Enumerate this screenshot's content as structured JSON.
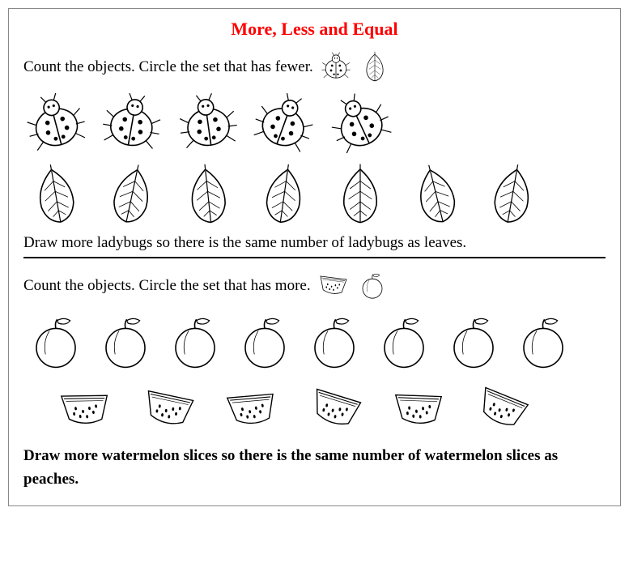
{
  "title": "More, Less and Equal",
  "title_color": "#ff0000",
  "section1": {
    "instruction": "Count the objects.  Circle the set that has fewer.",
    "ladybug_count": 5,
    "leaf_count": 7,
    "followup": "Draw more ladybugs so there is the same number of ladybugs as leaves."
  },
  "section2": {
    "instruction_prefix": "Count the objects.  Circle the set that has ",
    "instruction_emphasis": "more.",
    "peach_count": 8,
    "watermelon_count": 6,
    "followup": "Draw more watermelon slices so there is the same number of watermelon slices as peaches."
  },
  "colors": {
    "stroke": "#000000",
    "fill": "#ffffff",
    "background": "#ffffff"
  }
}
